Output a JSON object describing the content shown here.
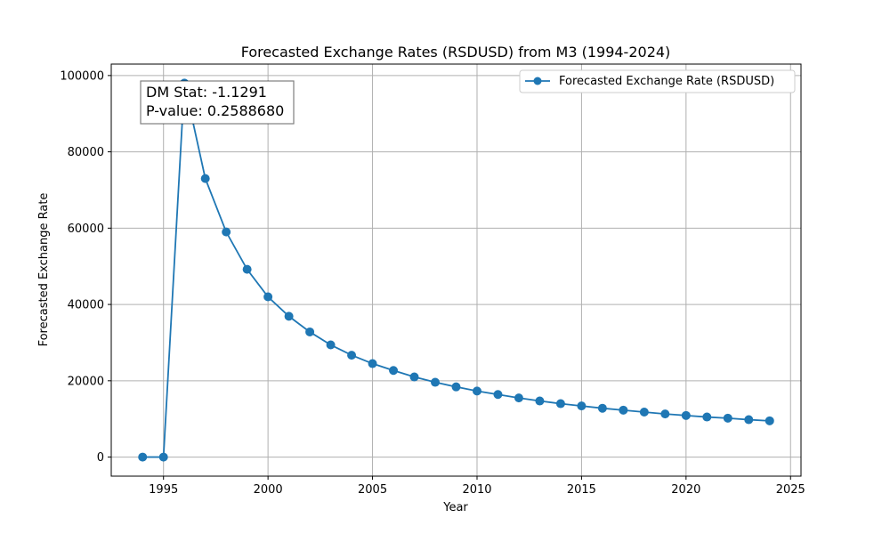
{
  "chart_data": {
    "type": "line",
    "title": "Forecasted Exchange Rates (RSDUSD) from M3 (1994-2024)",
    "xlabel": "Year",
    "ylabel": "Forecasted Exchange Rate",
    "xlim": [
      1992.5,
      2025.5
    ],
    "ylim": [
      -5000,
      103000
    ],
    "xticks": [
      1995,
      2000,
      2005,
      2010,
      2015,
      2020,
      2025
    ],
    "yticks": [
      0,
      20000,
      40000,
      60000,
      80000,
      100000
    ],
    "grid": true,
    "legend_position": "top-right",
    "series": [
      {
        "name": "Forecasted Exchange Rate (RSDUSD)",
        "color": "#1f77b4",
        "marker": "circle",
        "x": [
          1994,
          1995,
          1996,
          1997,
          1998,
          1999,
          2000,
          2001,
          2002,
          2003,
          2004,
          2005,
          2006,
          2007,
          2008,
          2009,
          2010,
          2011,
          2012,
          2013,
          2014,
          2015,
          2016,
          2017,
          2018,
          2019,
          2020,
          2021,
          2022,
          2023,
          2024
        ],
        "y": [
          0,
          0,
          98000,
          73000,
          59000,
          49200,
          42000,
          36900,
          32800,
          29400,
          26700,
          24500,
          22700,
          21000,
          19600,
          18400,
          17300,
          16400,
          15500,
          14700,
          14000,
          13400,
          12800,
          12300,
          11800,
          11300,
          10900,
          10500,
          10200,
          9800,
          9500
        ]
      }
    ],
    "annotation": {
      "lines": [
        "DM Stat: -1.1291",
        "P-value: 0.2588680"
      ]
    }
  }
}
